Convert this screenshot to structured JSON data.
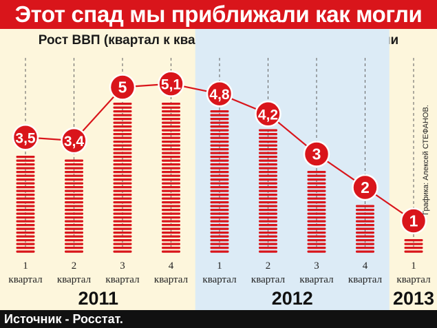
{
  "header": {
    "title": "Этот спад мы приближали как могли",
    "subtitle": "Рост ВВП (квартал к кварталу прошлого года) в России"
  },
  "credit": "Графика: Алексей СТЕФАНОВ.",
  "source": "Источник - Росстат.",
  "colors": {
    "accent": "#d9151b",
    "highlight_band": "#dcebf6",
    "background": "#fdf6dc",
    "footer": "#111111"
  },
  "chart_data": {
    "type": "bar",
    "title": "Рост ВВП (квартал к кварталу прошлого года) в России",
    "categories": [
      "1 квартал",
      "2 квартал",
      "3 квартал",
      "4 квартал",
      "1 квартал",
      "2 квартал",
      "3 квартал",
      "4 квартал",
      "1 квартал"
    ],
    "quarter_numbers": [
      "1",
      "2",
      "3",
      "4",
      "1",
      "2",
      "3",
      "4",
      "1"
    ],
    "quarter_word": "квартал",
    "values": [
      3.5,
      3.4,
      5,
      5.1,
      4.8,
      4.2,
      3,
      2,
      1
    ],
    "value_labels": [
      "3,5",
      "3,4",
      "5",
      "5,1",
      "4,8",
      "4,2",
      "3",
      "2",
      "1"
    ],
    "years": [
      {
        "label": "2011",
        "quarters": 4
      },
      {
        "label": "2012",
        "quarters": 4
      },
      {
        "label": "2013",
        "quarters": 1
      }
    ],
    "highlighted_year": "2012",
    "overlay": "line",
    "ylim": [
      0,
      5.5
    ]
  }
}
